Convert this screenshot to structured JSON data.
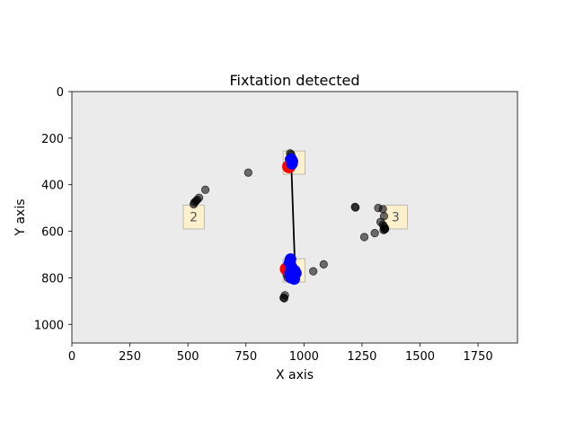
{
  "chart_data": {
    "type": "scatter",
    "title": "Fixtation detected",
    "xlabel": "X axis",
    "ylabel": "Y axis",
    "xlim": [
      0,
      1920
    ],
    "ylim": [
      1080,
      0
    ],
    "y_inverted": true,
    "grid": false,
    "background_color": "#ebebeb",
    "x_ticks": [
      0,
      250,
      500,
      750,
      1000,
      1250,
      1500,
      1750
    ],
    "x_tick_labels": [
      "0",
      "250",
      "500",
      "750",
      "1000",
      "1250",
      "1500",
      "1750"
    ],
    "y_ticks": [
      0,
      200,
      400,
      600,
      800,
      1000
    ],
    "y_tick_labels": [
      "0",
      "200",
      "400",
      "600",
      "800",
      "1000"
    ],
    "aois": [
      {
        "label": "",
        "x0": 910,
        "x1": 1005,
        "y0": 255,
        "y1": 355,
        "color": "#fdf0cc"
      },
      {
        "label": "2",
        "x0": 480,
        "x1": 570,
        "y0": 488,
        "y1": 590,
        "color": "#fdf0cc"
      },
      {
        "label": "3",
        "x0": 1345,
        "x1": 1445,
        "y0": 488,
        "y1": 590,
        "color": "#fdf0cc"
      },
      {
        "label": "",
        "x0": 910,
        "x1": 1005,
        "y0": 718,
        "y1": 818,
        "color": "#fdf0cc"
      }
    ],
    "gaze_points": {
      "color": "#000000",
      "x": [
        760,
        575,
        548,
        540,
        535,
        528,
        525,
        1220,
        1222,
        1320,
        1340,
        1345,
        1330,
        1340,
        1345,
        1350,
        1343,
        1348,
        1305,
        1260,
        1085,
        1040,
        912,
        915,
        918,
        940,
        945,
        935,
        950,
        925,
        930
      ],
      "y": [
        348,
        422,
        456,
        465,
        470,
        476,
        484,
        495,
        498,
        500,
        505,
        535,
        560,
        572,
        580,
        588,
        595,
        592,
        608,
        625,
        742,
        772,
        885,
        888,
        875,
        265,
        270,
        290,
        778,
        785,
        800
      ]
    },
    "fixations": {
      "color": "#0000ff",
      "x": [
        945,
        950,
        948,
        942,
        938,
        944,
        950,
        960,
        965,
        955,
        945,
        940,
        950,
        958
      ],
      "y": [
        290,
        300,
        310,
        720,
        735,
        750,
        760,
        770,
        780,
        790,
        800,
        780,
        765,
        805
      ]
    },
    "fixation_starts": {
      "color": "#ff0000",
      "x": [
        935,
        925
      ],
      "y": [
        322,
        762
      ]
    },
    "saccade": {
      "color": "#000000",
      "x": [
        945,
        963
      ],
      "y": [
        300,
        805
      ]
    }
  }
}
